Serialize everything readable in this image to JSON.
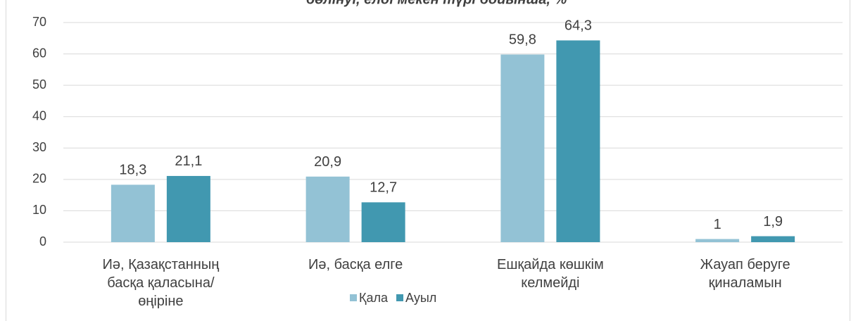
{
  "chart_data": {
    "type": "bar",
    "title": "бөлінуі, елді мекен түрі бойынша, %",
    "categories": [
      "Иә, Қазақстанның басқа қаласына/өңіріне",
      "Иә, басқа елге",
      "Ешқайда көшкім келмейді",
      "Жауап беруге қиналамын"
    ],
    "series": [
      {
        "name": "Қала",
        "color": "#93c2d5",
        "values": [
          18.3,
          20.9,
          59.8,
          1
        ],
        "value_labels": [
          "18,3",
          "20,9",
          "59,8",
          "1"
        ]
      },
      {
        "name": "Ауыл",
        "color": "#4198b0",
        "values": [
          21.1,
          12.7,
          64.3,
          1.9
        ],
        "value_labels": [
          "21,1",
          "12,7",
          "64,3",
          "1,9"
        ]
      }
    ],
    "ylim": [
      0,
      70
    ],
    "yticks": [
      0,
      10,
      20,
      30,
      40,
      50,
      60,
      70
    ],
    "grid": true,
    "legend": "bottom"
  }
}
